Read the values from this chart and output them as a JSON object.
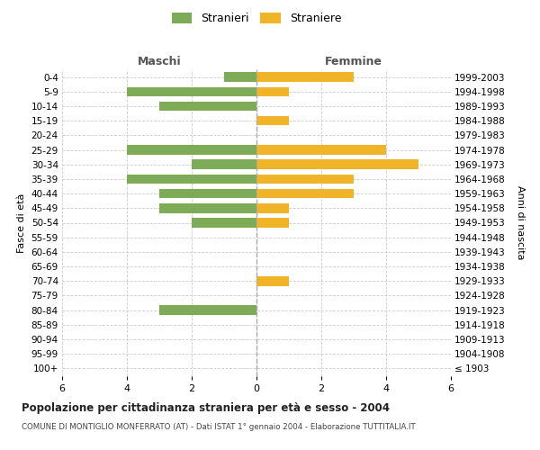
{
  "age_groups": [
    "100+",
    "95-99",
    "90-94",
    "85-89",
    "80-84",
    "75-79",
    "70-74",
    "65-69",
    "60-64",
    "55-59",
    "50-54",
    "45-49",
    "40-44",
    "35-39",
    "30-34",
    "25-29",
    "20-24",
    "15-19",
    "10-14",
    "5-9",
    "0-4"
  ],
  "birth_years": [
    "≤ 1903",
    "1904-1908",
    "1909-1913",
    "1914-1918",
    "1919-1923",
    "1924-1928",
    "1929-1933",
    "1934-1938",
    "1939-1943",
    "1944-1948",
    "1949-1953",
    "1954-1958",
    "1959-1963",
    "1964-1968",
    "1969-1973",
    "1974-1978",
    "1979-1983",
    "1984-1988",
    "1989-1993",
    "1994-1998",
    "1999-2003"
  ],
  "males": [
    0,
    0,
    0,
    0,
    3,
    0,
    0,
    0,
    0,
    0,
    2,
    3,
    3,
    4,
    2,
    4,
    0,
    0,
    3,
    4,
    1
  ],
  "females": [
    0,
    0,
    0,
    0,
    0,
    0,
    1,
    0,
    0,
    0,
    1,
    1,
    3,
    3,
    5,
    4,
    0,
    1,
    0,
    1,
    3
  ],
  "male_color": "#7dab57",
  "female_color": "#f0b429",
  "title_main": "Popolazione per cittadinanza straniera per età e sesso - 2004",
  "title_sub": "COMUNE DI MONTIGLIO MONFERRATO (AT) - Dati ISTAT 1° gennaio 2004 - Elaborazione TUTTITALIA.IT",
  "xlabel_left": "Maschi",
  "xlabel_right": "Femmine",
  "ylabel_left": "Fasce di età",
  "ylabel_right": "Anni di nascita",
  "legend_male": "Stranieri",
  "legend_female": "Straniere",
  "xlim": 6,
  "background_color": "#ffffff",
  "grid_color": "#cccccc"
}
